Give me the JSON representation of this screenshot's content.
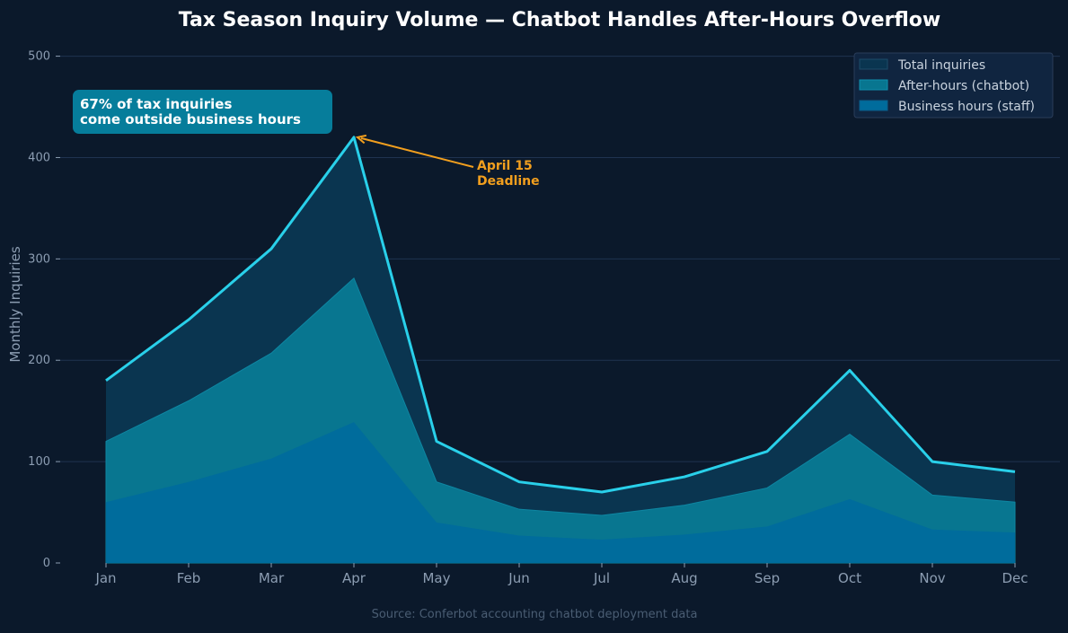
{
  "colors": {
    "background": "#0b192b",
    "grid": "#1f3350",
    "tick_text": "#8c9db2",
    "title": "#ffffff",
    "total_fill": "#0a3550",
    "after_hours_fill": "#087690",
    "business_fill": "#006c9c",
    "total_line": "#29d0ea",
    "annotation_box": "#067d9b",
    "annotation_text": "#ffffff",
    "deadline": "#f29f1e",
    "source": "#4a5d73",
    "legend_bg": "#102540",
    "legend_border": "#2a3d5a",
    "legend_text": "#c9d3de"
  },
  "chart_data": {
    "type": "area",
    "title": "Tax Season Inquiry Volume — Chatbot Handles After-Hours Overflow",
    "xlabel": "",
    "ylabel": "Monthly Inquiries",
    "categories": [
      "Jan",
      "Feb",
      "Mar",
      "Apr",
      "May",
      "Jun",
      "Jul",
      "Aug",
      "Sep",
      "Oct",
      "Nov",
      "Dec"
    ],
    "ylim": [
      0,
      520
    ],
    "yticks": [
      0,
      100,
      200,
      300,
      400,
      500
    ],
    "grid": true,
    "legend_position": "top-right",
    "series": [
      {
        "name": "Total inquiries",
        "values": [
          180,
          240,
          310,
          420,
          120,
          80,
          70,
          85,
          110,
          190,
          100,
          90
        ]
      },
      {
        "name": "After-hours (chatbot)",
        "values": [
          120,
          160,
          207,
          281,
          80,
          53,
          47,
          57,
          74,
          127,
          67,
          60
        ]
      },
      {
        "name": "Business hours (staff)",
        "values": [
          60,
          80,
          103,
          139,
          40,
          27,
          23,
          28,
          36,
          63,
          33,
          30
        ]
      }
    ],
    "annotations": {
      "callout_line1": "67% of tax inquiries",
      "callout_line2": "come outside business hours",
      "deadline_line1": "April 15",
      "deadline_line2": "Deadline",
      "deadline_category": "Apr",
      "deadline_value": 420
    },
    "source": "Source: Conferbot accounting chatbot deployment data"
  }
}
